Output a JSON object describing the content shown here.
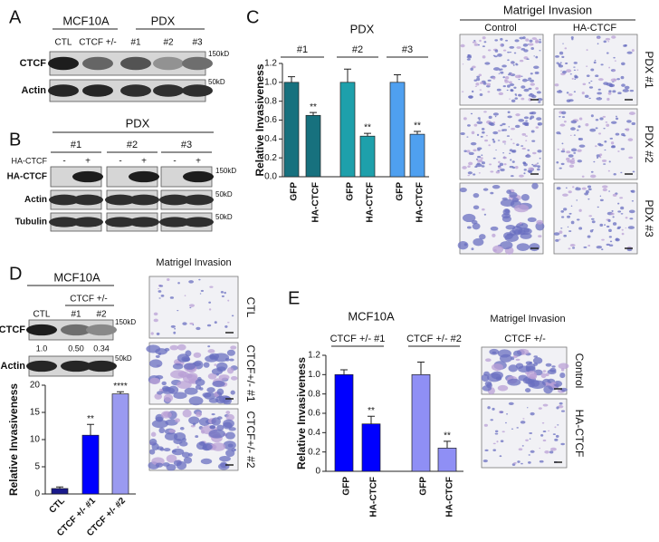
{
  "panels": {
    "A": {
      "label": "A",
      "groups": [
        "MCF10A",
        "PDX"
      ],
      "lanes": [
        "CTL",
        "CTCF +/-",
        "#1",
        "#2",
        "#3"
      ],
      "rows": [
        "CTCF",
        "Actin"
      ],
      "markers": [
        "150kD",
        "50kD"
      ]
    },
    "B": {
      "label": "B",
      "title": "PDX",
      "groups": [
        "#1",
        "#2",
        "#3"
      ],
      "treatment": "HA-CTCF",
      "signs": [
        "-",
        "+",
        "-",
        "+",
        "-",
        "+"
      ],
      "rows": [
        "HA-CTCF",
        "Actin",
        "Tubulin"
      ],
      "markers": [
        "150kD",
        "50kD",
        "50kD"
      ]
    },
    "C": {
      "label": "C",
      "images": {
        "title": "Matrigel Invasion",
        "columns": [
          "Control",
          "HA-CTCF"
        ],
        "rows": [
          "PDX #1",
          "PDX #2",
          "PDX #3"
        ]
      }
    },
    "D": {
      "label": "D",
      "blot": {
        "title": "MCF10A",
        "group": "CTCF +/-",
        "lanes": [
          "CTL",
          "#1",
          "#2"
        ],
        "rows": [
          "CTCF",
          "Actin"
        ],
        "quantification": [
          "1.0",
          "0.50",
          "0.34"
        ],
        "markers": [
          "150kD",
          "50kD"
        ]
      },
      "images": {
        "title": "Matrigel Invasion",
        "rows": [
          "CTL",
          "CTCF+/- #1",
          "CTCF+/- #2"
        ]
      }
    },
    "E": {
      "label": "E",
      "images": {
        "title": "Matrigel Invasion",
        "subtitle": "CTCF +/-",
        "rows": [
          "Control",
          "HA-CTCF"
        ]
      }
    }
  },
  "chart_data": [
    {
      "type": "bar",
      "title": "PDX",
      "groups": [
        "#1",
        "#2",
        "#3"
      ],
      "categories": [
        "GFP",
        "HA-CTCF",
        "GFP",
        "HA-CTCF",
        "GFP",
        "HA-CTCF"
      ],
      "values": [
        1.0,
        0.65,
        1.0,
        0.43,
        1.0,
        0.45
      ],
      "errors": [
        0.06,
        0.03,
        0.14,
        0.03,
        0.08,
        0.03
      ],
      "colors": [
        "#17717e",
        "#17717e",
        "#1ea0ab",
        "#1ea0ab",
        "#4fa0f0",
        "#4fa0f0"
      ],
      "significance": [
        null,
        "**",
        null,
        "**",
        null,
        "**"
      ],
      "y_label": "Relative Invasiveness",
      "ylim": [
        0,
        1.2
      ],
      "yticks": [
        {
          "value": 0,
          "label": "0.0"
        },
        0.2,
        0.4,
        0.6,
        0.8,
        {
          "value": 1,
          "label": "1.0"
        },
        1.2
      ]
    },
    {
      "type": "bar",
      "categories": [
        "CTL",
        "CTCF +/- #1",
        "CTCF +/- #2"
      ],
      "values": [
        1,
        10.8,
        18.4
      ],
      "errors": [
        0.3,
        2.0,
        0.4
      ],
      "colors": [
        "#1a1a8c",
        "#0000ff",
        "#9a9af0"
      ],
      "significance": [
        null,
        "**",
        "****"
      ],
      "y_label": "Relative Invasiveness",
      "ylim": [
        0,
        20
      ],
      "yticks": [
        0,
        5,
        10,
        15,
        20
      ]
    },
    {
      "type": "bar",
      "title": "MCF10A",
      "groups": [
        "CTCF +/- #1",
        "CTCF +/- #2"
      ],
      "categories": [
        "GFP",
        "HA-CTCF",
        "GFP",
        "HA-CTCF"
      ],
      "values": [
        1.0,
        0.49,
        1.0,
        0.24
      ],
      "errors": [
        0.05,
        0.08,
        0.13,
        0.07
      ],
      "colors": [
        "#0000ff",
        "#0000ff",
        "#8f8ff5",
        "#8f8ff5"
      ],
      "significance": [
        null,
        "**",
        null,
        "**"
      ],
      "y_label": "Relative Invasiveness",
      "ylim": [
        0,
        1.2
      ],
      "yticks": [
        0,
        0.2,
        0.4,
        0.6,
        0.8,
        {
          "value": 1,
          "label": "1.0"
        },
        1.2
      ]
    }
  ]
}
